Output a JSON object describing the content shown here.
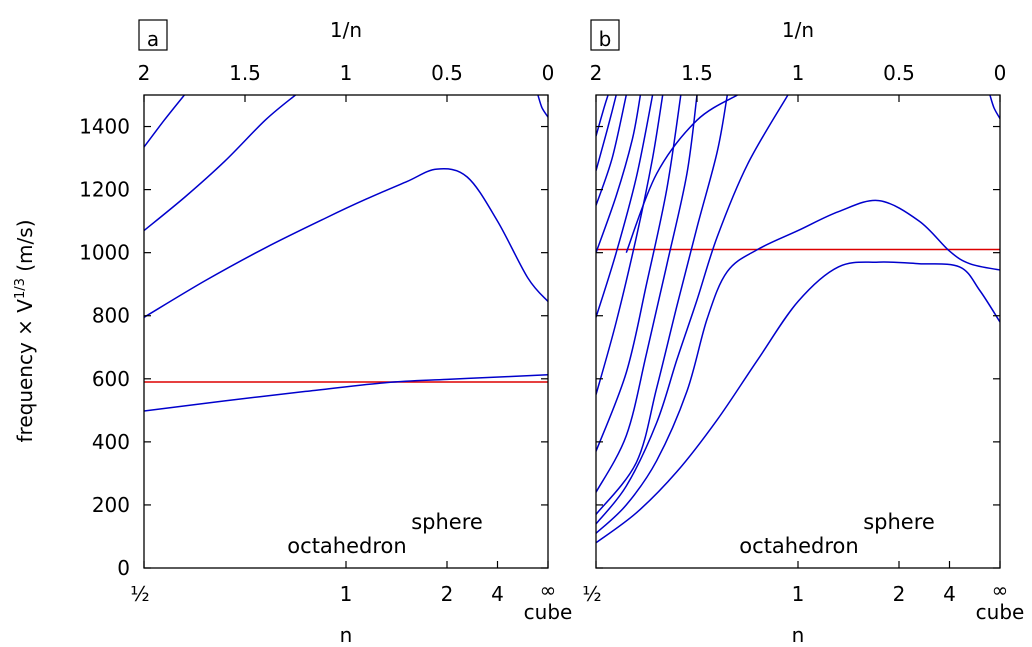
{
  "chart_data": [
    {
      "type": "line",
      "panel_label": "a",
      "ylabel": "frequency × V",
      "ylabel_sup": "1/3",
      "ylabel_unit": " (m/s)",
      "xlabel": "n",
      "x2label": "1/n",
      "ylim": [
        0,
        1500
      ],
      "xlim_inv_n": [
        2,
        0
      ],
      "yticks": [
        "0",
        "200",
        "400",
        "600",
        "800",
        "1000",
        "1200",
        "1400"
      ],
      "xticks": [
        "½",
        "1",
        "2",
        "4",
        "∞"
      ],
      "x2ticks": [
        "2",
        "1.5",
        "1",
        "0.5",
        "0"
      ],
      "cube_label": "cube",
      "annotations": [
        "octahedron",
        "sphere"
      ],
      "reference_line": 590,
      "series": [
        {
          "points": [
            [
              2,
              498
            ],
            [
              1.6,
              530
            ],
            [
              1.2,
              560
            ],
            [
              0.8,
              588
            ],
            [
              0.5,
              598
            ],
            [
              0.2,
              607
            ],
            [
              0,
              613
            ]
          ]
        },
        {
          "points": [
            [
              2,
              795
            ],
            [
              1.7,
              910
            ],
            [
              1.4,
              1015
            ],
            [
              1.1,
              1110
            ],
            [
              0.9,
              1170
            ],
            [
              0.7,
              1225
            ],
            [
              0.55,
              1265
            ],
            [
              0.4,
              1240
            ],
            [
              0.25,
              1100
            ],
            [
              0.1,
              920
            ],
            [
              0,
              845
            ]
          ]
        },
        {
          "points": [
            [
              2,
              1070
            ],
            [
              1.8,
              1175
            ],
            [
              1.6,
              1290
            ],
            [
              1.4,
              1420
            ],
            [
              1.25,
              1500
            ]
          ]
        },
        {
          "points": [
            [
              2,
              1335
            ],
            [
              1.9,
              1420
            ],
            [
              1.8,
              1500
            ]
          ]
        },
        {
          "points": [
            [
              0.05,
              1500
            ],
            [
              0.03,
              1460
            ],
            [
              0,
              1430
            ]
          ]
        }
      ]
    },
    {
      "type": "line",
      "panel_label": "b",
      "xlabel": "n",
      "x2label": "1/n",
      "ylim": [
        0,
        1500
      ],
      "xlim_inv_n": [
        2,
        0
      ],
      "xticks": [
        "½",
        "1",
        "2",
        "4",
        "∞"
      ],
      "x2ticks": [
        "2",
        "1.5",
        "1",
        "0.5",
        "0"
      ],
      "cube_label": "cube",
      "annotations": [
        "octahedron",
        "sphere"
      ],
      "reference_line": 1010,
      "series": [
        {
          "points": [
            [
              2,
              80
            ],
            [
              1.8,
              175
            ],
            [
              1.6,
              305
            ],
            [
              1.4,
              470
            ],
            [
              1.2,
              660
            ],
            [
              1.0,
              845
            ],
            [
              0.8,
              955
            ],
            [
              0.6,
              970
            ],
            [
              0.4,
              965
            ],
            [
              0.2,
              955
            ],
            [
              0.1,
              880
            ],
            [
              0,
              780
            ]
          ]
        },
        {
          "points": [
            [
              2,
              110
            ],
            [
              1.85,
              200
            ],
            [
              1.7,
              340
            ],
            [
              1.55,
              560
            ],
            [
              1.45,
              790
            ],
            [
              1.35,
              940
            ],
            [
              1.2,
              1010
            ],
            [
              1.0,
              1070
            ],
            [
              0.8,
              1130
            ],
            [
              0.6,
              1165
            ],
            [
              0.4,
              1100
            ],
            [
              0.25,
              1005
            ],
            [
              0.15,
              965
            ],
            [
              0,
              945
            ]
          ]
        },
        {
          "points": [
            [
              2,
              140
            ],
            [
              1.85,
              260
            ],
            [
              1.7,
              460
            ],
            [
              1.6,
              660
            ],
            [
              1.5,
              850
            ],
            [
              1.4,
              1050
            ],
            [
              1.25,
              1280
            ],
            [
              1.05,
              1500
            ]
          ]
        },
        {
          "points": [
            [
              2,
              170
            ],
            [
              1.8,
              335
            ],
            [
              1.7,
              570
            ],
            [
              1.6,
              830
            ],
            [
              1.5,
              1080
            ],
            [
              1.4,
              1320
            ],
            [
              1.35,
              1500
            ]
          ]
        },
        {
          "points": [
            [
              2,
              240
            ],
            [
              1.85,
              420
            ],
            [
              1.75,
              680
            ],
            [
              1.65,
              960
            ],
            [
              1.55,
              1250
            ],
            [
              1.5,
              1500
            ]
          ]
        },
        {
          "points": [
            [
              2,
              370
            ],
            [
              1.85,
              620
            ],
            [
              1.75,
              900
            ],
            [
              1.65,
              1200
            ],
            [
              1.58,
              1500
            ]
          ]
        },
        {
          "points": [
            [
              2,
              550
            ],
            [
              1.9,
              780
            ],
            [
              1.8,
              1050
            ],
            [
              1.72,
              1300
            ],
            [
              1.67,
              1500
            ]
          ]
        },
        {
          "points": [
            [
              2,
              795
            ],
            [
              1.9,
              1000
            ],
            [
              1.8,
              1240
            ],
            [
              1.72,
              1500
            ]
          ]
        },
        {
          "points": [
            [
              2,
              1000
            ],
            [
              1.9,
              1180
            ],
            [
              1.82,
              1360
            ],
            [
              1.78,
              1500
            ]
          ]
        },
        {
          "points": [
            [
              2,
              1150
            ],
            [
              1.92,
              1300
            ],
            [
              1.85,
              1500
            ]
          ]
        },
        {
          "points": [
            [
              2,
              1260
            ],
            [
              1.94,
              1400
            ],
            [
              1.9,
              1500
            ]
          ]
        },
        {
          "points": [
            [
              2,
              1370
            ],
            [
              1.96,
              1460
            ],
            [
              1.94,
              1500
            ]
          ]
        },
        {
          "points": [
            [
              1.85,
              1000
            ],
            [
              1.7,
              1250
            ],
            [
              1.5,
              1420
            ],
            [
              1.3,
              1500
            ]
          ]
        },
        {
          "points": [
            [
              0.05,
              1500
            ],
            [
              0.03,
              1460
            ],
            [
              0,
              1425
            ]
          ]
        }
      ]
    }
  ]
}
